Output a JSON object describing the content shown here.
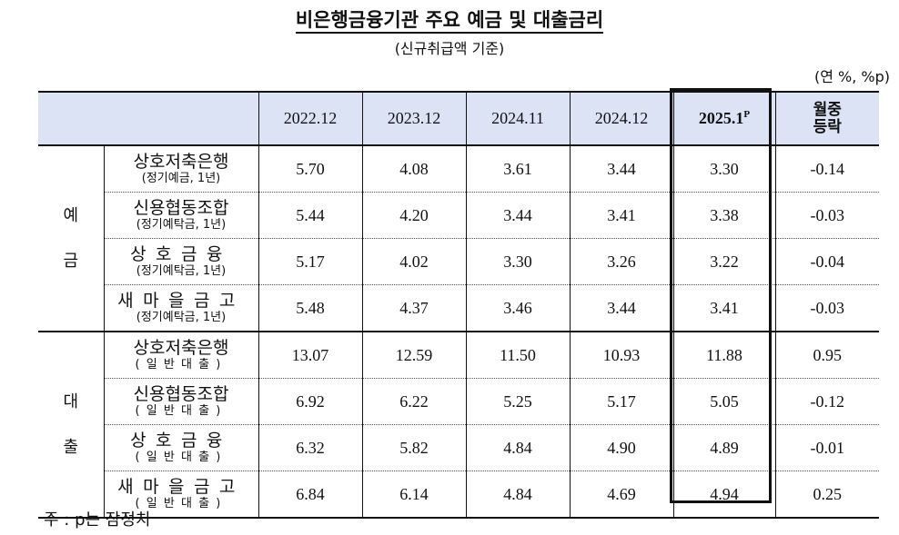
{
  "title": "비은행금융기관 주요 예금 및 대출금리",
  "subtitle": "(신규취급액 기준)",
  "unit": "(연 %, %p)",
  "header": {
    "periods": [
      "2022.12",
      "2023.12",
      "2024.11",
      "2024.12"
    ],
    "latest": "2025.1",
    "latest_mark": "P",
    "change_line1": "월중",
    "change_line2": "등락"
  },
  "groups": [
    {
      "chars": [
        "예",
        "금"
      ],
      "rows": [
        {
          "name": "상호저축은행",
          "sub": "(정기예금, 1년)",
          "values": [
            "5.70",
            "4.08",
            "3.61",
            "3.44",
            "3.30",
            "-0.14"
          ]
        },
        {
          "name": "신용협동조합",
          "sub": "(정기예탁금, 1년)",
          "values": [
            "5.44",
            "4.20",
            "3.44",
            "3.41",
            "3.38",
            "-0.03"
          ]
        },
        {
          "name": "상호금융",
          "sub": "(정기예탁금, 1년)",
          "values": [
            "5.17",
            "4.02",
            "3.30",
            "3.26",
            "3.22",
            "-0.04"
          ]
        },
        {
          "name": "새마을금고",
          "sub": "(정기예탁금, 1년)",
          "values": [
            "5.48",
            "4.37",
            "3.46",
            "3.44",
            "3.41",
            "-0.03"
          ]
        }
      ]
    },
    {
      "chars": [
        "대",
        "출"
      ],
      "rows": [
        {
          "name": "상호저축은행",
          "sub": "(일반대출)",
          "values": [
            "13.07",
            "12.59",
            "11.50",
            "10.93",
            "11.88",
            "0.95"
          ]
        },
        {
          "name": "신용협동조합",
          "sub": "(일반대출)",
          "values": [
            "6.92",
            "6.22",
            "5.25",
            "5.17",
            "5.05",
            "-0.12"
          ]
        },
        {
          "name": "상호금융",
          "sub": "(일반대출)",
          "values": [
            "6.32",
            "5.82",
            "4.84",
            "4.90",
            "4.89",
            "-0.01"
          ]
        },
        {
          "name": "새마을금고",
          "sub": "(일반대출)",
          "values": [
            "6.84",
            "6.14",
            "4.84",
            "4.69",
            "4.94",
            "0.25"
          ]
        }
      ]
    }
  ],
  "footnote": "주 : p는 잠정치"
}
